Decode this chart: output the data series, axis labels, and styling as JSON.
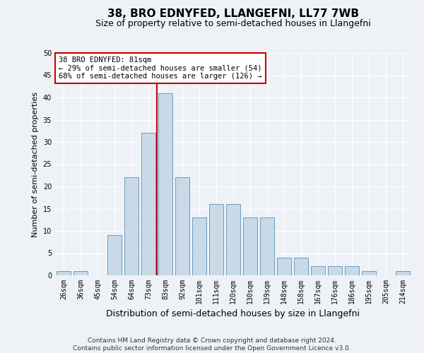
{
  "title": "38, BRO EDNYFED, LLANGEFNI, LL77 7WB",
  "subtitle": "Size of property relative to semi-detached houses in Llangefni",
  "xlabel": "Distribution of semi-detached houses by size in Llangefni",
  "ylabel": "Number of semi-detached properties",
  "footer_line1": "Contains HM Land Registry data © Crown copyright and database right 2024.",
  "footer_line2": "Contains public sector information licensed under the Open Government Licence v3.0.",
  "annotation_title": "38 BRO EDNYFED: 81sqm",
  "annotation_line1": "← 29% of semi-detached houses are smaller (54)",
  "annotation_line2": "68% of semi-detached houses are larger (126) →",
  "bar_color": "#c9d9e8",
  "bar_edge_color": "#6a9cbf",
  "property_line_color": "#cc0000",
  "categories": [
    "26sqm",
    "36sqm",
    "45sqm",
    "54sqm",
    "64sqm",
    "73sqm",
    "83sqm",
    "92sqm",
    "101sqm",
    "111sqm",
    "120sqm",
    "130sqm",
    "139sqm",
    "148sqm",
    "158sqm",
    "167sqm",
    "176sqm",
    "186sqm",
    "195sqm",
    "205sqm",
    "214sqm"
  ],
  "values": [
    1,
    1,
    0,
    9,
    22,
    32,
    41,
    22,
    13,
    16,
    16,
    13,
    13,
    4,
    4,
    2,
    2,
    2,
    1,
    0,
    1
  ],
  "ylim": [
    0,
    50
  ],
  "yticks": [
    0,
    5,
    10,
    15,
    20,
    25,
    30,
    35,
    40,
    45,
    50
  ],
  "property_bar_index": 6,
  "background_color": "#eef2f7",
  "grid_color": "#ffffff",
  "annotation_box_color": "#ffffff",
  "annotation_box_edge_color": "#cc0000",
  "title_fontsize": 11,
  "subtitle_fontsize": 9,
  "ylabel_fontsize": 8,
  "xlabel_fontsize": 9,
  "tick_fontsize": 7,
  "footer_fontsize": 6.5,
  "annotation_fontsize": 7.5
}
